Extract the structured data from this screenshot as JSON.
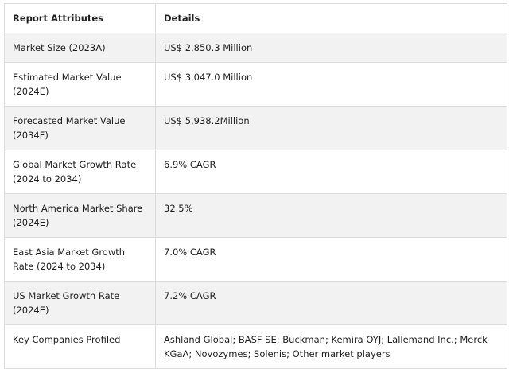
{
  "table": {
    "headers": [
      "Report Attributes",
      "Details"
    ],
    "rows": [
      {
        "attribute": "Market Size (2023A)",
        "detail": "US$ 2,850.3 Million"
      },
      {
        "attribute": "Estimated Market Value (2024E)",
        "detail": "US$ 3,047.0 Million"
      },
      {
        "attribute": "Forecasted Market Value (2034F)",
        "detail": "US$ 5,938.2Million"
      },
      {
        "attribute": "Global Market Growth Rate (2024 to 2034)",
        "detail": "6.9% CAGR"
      },
      {
        "attribute": "North America Market Share (2024E)",
        "detail": "32.5%"
      },
      {
        "attribute": "East Asia Market Growth Rate (2024 to 2034)",
        "detail": "7.0% CAGR"
      },
      {
        "attribute": "US Market Growth Rate (2024E)",
        "detail": "7.2% CAGR"
      },
      {
        "attribute": "Key Companies Profiled",
        "detail": "Ashland Global; BASF SE; Buckman; Kemira OYJ; Lallemand Inc.; Merck KGaA; Novozymes; Solenis; Other market players"
      }
    ]
  }
}
